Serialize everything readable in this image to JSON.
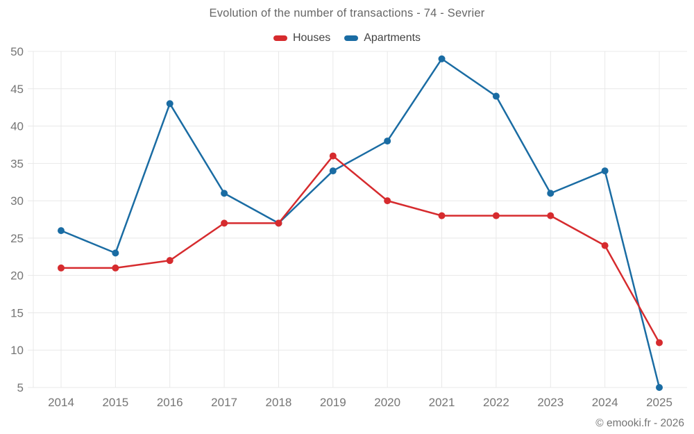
{
  "chart_data": {
    "type": "line",
    "title": "Evolution of the number of transactions - 74 - Sevrier",
    "categories": [
      "2014",
      "2015",
      "2016",
      "2017",
      "2018",
      "2019",
      "2020",
      "2021",
      "2022",
      "2023",
      "2024",
      "2025"
    ],
    "series": [
      {
        "name": "Houses",
        "color": "#d62b2e",
        "values": [
          21,
          21,
          22,
          27,
          27,
          36,
          30,
          28,
          28,
          28,
          24,
          11
        ]
      },
      {
        "name": "Apartments",
        "color": "#1a6ca3",
        "values": [
          26,
          23,
          43,
          31,
          27,
          34,
          38,
          49,
          44,
          31,
          34,
          5
        ]
      }
    ],
    "ylim": [
      5,
      50
    ],
    "yticks": [
      5,
      10,
      15,
      20,
      25,
      30,
      35,
      40,
      45,
      50
    ],
    "grid": true,
    "legend_position": "top",
    "grid_color": "#e8e8e8",
    "axis_label_color": "#757575",
    "title_color": "#666666",
    "legend_text_color": "#424242"
  },
  "footer": {
    "copyright": "© emooki.fr - 2026"
  }
}
